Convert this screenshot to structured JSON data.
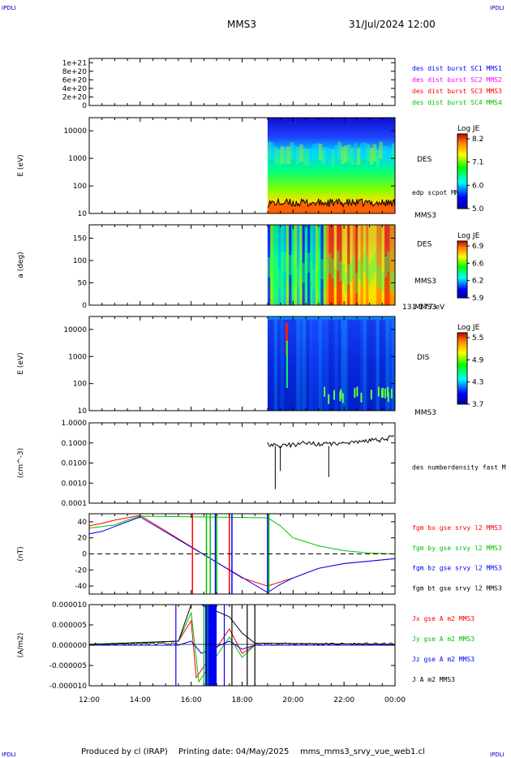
{
  "header": {
    "corner_left": "IPDLI",
    "corner_right": "IPDLI",
    "spacecraft": "MMS3",
    "datetime": "31/Jul/2024 12:00"
  },
  "footer": {
    "produced_by": "Produced by cl (IRAP)",
    "printing_date": "Printing date: 04/May/2025",
    "product": "mms_mms3_srvy_vue_web1.cl",
    "corner_left": "IPDLI",
    "corner_right": "IPDLI"
  },
  "x_axis": {
    "ticks": [
      "12:00",
      "14:00",
      "16:00",
      "18:00",
      "20:00",
      "22:00",
      "00:00"
    ],
    "range_hours": [
      12,
      24
    ]
  },
  "colors": {
    "sc1": "#0000ff",
    "sc2": "#ff00ff",
    "sc3": "#ff0000",
    "sc4": "#00c000",
    "bx": "#ff0000",
    "by": "#00c000",
    "bz": "#0000ff",
    "bt": "#000000"
  },
  "chart_data": [
    {
      "type": "line",
      "panel": "burst-flags",
      "yticks": [
        "1e+21",
        "8e+20",
        "6e+20",
        "4e+20",
        "2e+20",
        "0"
      ],
      "ylim": [
        0,
        1.1e+21
      ],
      "legend": [
        "des dist burst SC1 MMS1",
        "des dist burst SC2 MMS2",
        "des dist burst SC3 MMS3",
        "des dist burst SC4 MMS4"
      ],
      "series": [
        {
          "values": [
            0,
            0
          ]
        }
      ]
    },
    {
      "type": "heatmap",
      "panel": "des-energy",
      "ylabel": "E (eV)",
      "yticks": [
        "10000",
        "1000",
        "100",
        "10"
      ],
      "ylim": [
        10,
        30000
      ],
      "yscale": "log",
      "label": "DES",
      "instrument_label": "MMS3",
      "overlay_label": "edp scpot MMS3",
      "data_start_hour": 19.0,
      "colorbar": {
        "title": "Log JE",
        "ticks": [
          "8.2",
          "7.1",
          "6.0",
          "5.0"
        ],
        "range": [
          5.0,
          8.2
        ]
      }
    },
    {
      "type": "heatmap",
      "panel": "des-pitch",
      "ylabel": "a (deg)",
      "yticks": [
        "150",
        "100",
        "50",
        "0"
      ],
      "ylim": [
        0,
        180
      ],
      "label": "DES",
      "instrument_label": "MMS3",
      "energy_label": "131-177 eV",
      "data_start_hour": 19.0,
      "colorbar": {
        "title": "Log JE",
        "ticks": [
          "6.9",
          "6.6",
          "6.2",
          "5.9"
        ],
        "range": [
          5.9,
          6.9
        ]
      }
    },
    {
      "type": "heatmap",
      "panel": "dis-energy",
      "ylabel": "E (eV)",
      "yticks": [
        "10000",
        "1000",
        "100",
        "10"
      ],
      "ylim": [
        10,
        30000
      ],
      "yscale": "log",
      "label": "DIS",
      "instrument_label": "MMS3",
      "data_start_hour": 19.0,
      "colorbar": {
        "title": "Log JE",
        "ticks": [
          "5.5",
          "4.9",
          "4.3",
          "3.7"
        ],
        "range": [
          3.7,
          5.5
        ]
      }
    },
    {
      "type": "line",
      "panel": "density",
      "ylabel": "(cm^-3)",
      "yticks": [
        "1.0000",
        "0.1000",
        "0.0100",
        "0.0010",
        "0.0001"
      ],
      "ylim": [
        0.0001,
        1
      ],
      "yscale": "log",
      "legend": [
        "des numberdensity fast M"
      ],
      "series": [
        {
          "x": [
            19.0,
            19.5,
            20.0,
            20.5,
            21.0,
            21.5,
            22.0,
            22.5,
            23.0,
            23.5,
            24.0
          ],
          "values": [
            0.08,
            0.07,
            0.08,
            0.1,
            0.09,
            0.09,
            0.1,
            0.12,
            0.13,
            0.15,
            0.2
          ]
        }
      ]
    },
    {
      "type": "line",
      "panel": "magnetic-field",
      "ylabel": "(nT)",
      "yticks": [
        "40",
        "20",
        "0",
        "-20",
        "-40"
      ],
      "ylim": [
        -50,
        50
      ],
      "legend": [
        "fgm bx gse srvy l2 MMS3",
        "fgm by gse srvy l2 MMS3",
        "fgm bz gse srvy l2 MMS3",
        "fgm bt gse srvy l2 MMS3"
      ],
      "series": [
        {
          "x": [
            12.0,
            12.5,
            13.0,
            13.5,
            14.0,
            18.0,
            19.0,
            20.0,
            21.0,
            22.0,
            23.0,
            24.0
          ],
          "values": [
            35,
            38,
            42,
            45,
            48,
            -30,
            -40,
            -30,
            -18,
            -12,
            -9,
            -6
          ]
        },
        {
          "x": [
            12.0,
            12.5,
            13.0,
            13.5,
            14.0,
            19.0,
            19.5,
            20.0,
            21.0,
            22.0,
            23.0,
            24.0
          ],
          "values": [
            32,
            34,
            36,
            42,
            47,
            45,
            35,
            20,
            10,
            4,
            1,
            0
          ]
        },
        {
          "x": [
            12.0,
            12.5,
            13.0,
            13.5,
            14.0,
            19.0,
            19.5,
            20.0,
            21.0,
            22.0,
            23.0,
            24.0
          ],
          "values": [
            25,
            28,
            34,
            40,
            46,
            -48,
            -38,
            -30,
            -18,
            -12,
            -9,
            -6
          ]
        }
      ]
    },
    {
      "type": "line",
      "panel": "current-density",
      "ylabel": "(A/m2)",
      "yticks": [
        "0.000010",
        "0.000005",
        "0.000000",
        "-0.000005",
        "-0.000010"
      ],
      "ylim": [
        -1e-05,
        1e-05
      ],
      "legend": [
        "Jx gse A m2 MMS3",
        "Jy gse A m2 MMS3",
        "Jz gse A m2 MMS3",
        "J A m2 MMS3"
      ],
      "series": [
        {
          "x": [
            12.0,
            15.5,
            16.0,
            16.2,
            17.5,
            18.0,
            18.5,
            24.0
          ],
          "values": [
            0,
            1e-06,
            6e-06,
            -8e-06,
            4e-06,
            -2e-06,
            0,
            0
          ]
        },
        {
          "x": [
            12.0,
            15.5,
            16.0,
            16.3,
            17.5,
            18.0,
            18.5,
            24.0
          ],
          "values": [
            0,
            1e-06,
            8e-06,
            -9e-06,
            2e-06,
            -3e-06,
            0,
            0
          ]
        },
        {
          "x": [
            12.0,
            15.5,
            16.0,
            16.4,
            17.5,
            18.0,
            18.5,
            24.0
          ],
          "values": [
            0,
            0,
            1e-06,
            -2e-06,
            1e-06,
            -1e-06,
            0,
            0
          ]
        },
        {
          "x": [
            12.0,
            15.5,
            16.0,
            16.4,
            17.5,
            18.0,
            18.5,
            24.0
          ],
          "values": [
            2e-07,
            1e-06,
            1e-05,
            1e-05,
            7e-06,
            3e-06,
            5e-07,
            2e-07
          ]
        }
      ]
    }
  ]
}
